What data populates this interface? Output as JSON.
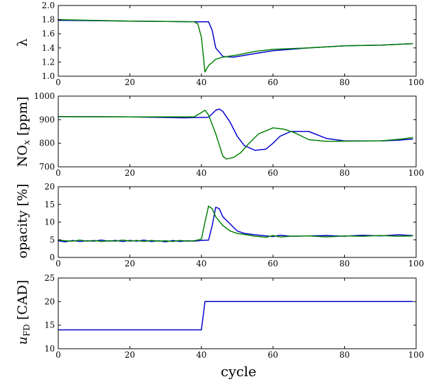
{
  "figure": {
    "xlabel": "cycle"
  },
  "chart_data": [
    {
      "type": "line",
      "ylabel": "λ",
      "xlim": [
        0,
        100
      ],
      "ylim": [
        1.0,
        2.0
      ],
      "x_ticks": [
        "0",
        "20",
        "40",
        "60",
        "80",
        "100"
      ],
      "y_ticks": [
        "1.0",
        "1.2",
        "1.4",
        "1.6",
        "1.8",
        "2.0"
      ],
      "series": [
        {
          "color": "#0000cc",
          "points": [
            [
              0,
              1.79
            ],
            [
              20,
              1.78
            ],
            [
              38,
              1.77
            ],
            [
              42,
              1.77
            ],
            [
              43,
              1.65
            ],
            [
              44,
              1.4
            ],
            [
              46,
              1.28
            ],
            [
              49,
              1.27
            ],
            [
              55,
              1.32
            ],
            [
              60,
              1.36
            ],
            [
              70,
              1.4
            ],
            [
              80,
              1.43
            ],
            [
              90,
              1.44
            ],
            [
              99,
              1.46
            ]
          ]
        },
        {
          "color": "#008000",
          "points": [
            [
              0,
              1.8
            ],
            [
              20,
              1.78
            ],
            [
              38,
              1.77
            ],
            [
              39,
              1.74
            ],
            [
              40,
              1.55
            ],
            [
              41,
              1.06
            ],
            [
              42,
              1.15
            ],
            [
              44,
              1.24
            ],
            [
              46,
              1.27
            ],
            [
              50,
              1.3
            ],
            [
              55,
              1.35
            ],
            [
              60,
              1.38
            ],
            [
              70,
              1.4
            ],
            [
              80,
              1.43
            ],
            [
              90,
              1.44
            ],
            [
              99,
              1.46
            ]
          ]
        }
      ]
    },
    {
      "type": "line",
      "ylabel": "NO_x [ppm]",
      "xlim": [
        0,
        100
      ],
      "ylim": [
        700,
        1000
      ],
      "x_ticks": [
        "0",
        "20",
        "40",
        "60",
        "80",
        "100"
      ],
      "y_ticks": [
        "700",
        "800",
        "900",
        "1000"
      ],
      "series": [
        {
          "color": "#0000cc",
          "points": [
            [
              0,
              913
            ],
            [
              20,
              912
            ],
            [
              35,
              908
            ],
            [
              42,
              910
            ],
            [
              44,
              940
            ],
            [
              45,
              945
            ],
            [
              46,
              935
            ],
            [
              48,
              890
            ],
            [
              50,
              830
            ],
            [
              52,
              790
            ],
            [
              55,
              770
            ],
            [
              58,
              775
            ],
            [
              60,
              800
            ],
            [
              62,
              830
            ],
            [
              65,
              850
            ],
            [
              70,
              850
            ],
            [
              75,
              820
            ],
            [
              80,
              810
            ],
            [
              90,
              810
            ],
            [
              95,
              813
            ],
            [
              99,
              818
            ]
          ]
        },
        {
          "color": "#008000",
          "points": [
            [
              0,
              913
            ],
            [
              20,
              912
            ],
            [
              38,
              912
            ],
            [
              40,
              930
            ],
            [
              41,
              940
            ],
            [
              42,
              920
            ],
            [
              44,
              840
            ],
            [
              46,
              745
            ],
            [
              47,
              733
            ],
            [
              49,
              740
            ],
            [
              51,
              760
            ],
            [
              53,
              795
            ],
            [
              56,
              840
            ],
            [
              60,
              865
            ],
            [
              63,
              860
            ],
            [
              66,
              845
            ],
            [
              70,
              815
            ],
            [
              75,
              808
            ],
            [
              90,
              810
            ],
            [
              96,
              818
            ],
            [
              99,
              824
            ]
          ]
        }
      ]
    },
    {
      "type": "line",
      "ylabel": "opacity [%]",
      "xlim": [
        0,
        100
      ],
      "ylim": [
        0,
        20
      ],
      "x_ticks": [
        "0",
        "20",
        "40",
        "60",
        "80",
        "100"
      ],
      "y_ticks": [
        "0",
        "5",
        "10",
        "15",
        "20"
      ],
      "series": [
        {
          "color": "#0000cc",
          "points": [
            [
              0,
              4.7
            ],
            [
              2,
              4.4
            ],
            [
              4,
              4.8
            ],
            [
              6,
              4.5
            ],
            [
              8,
              4.7
            ],
            [
              10,
              4.6
            ],
            [
              12,
              4.9
            ],
            [
              14,
              4.6
            ],
            [
              16,
              4.8
            ],
            [
              18,
              4.5
            ],
            [
              20,
              4.8
            ],
            [
              22,
              4.6
            ],
            [
              24,
              4.9
            ],
            [
              26,
              4.5
            ],
            [
              28,
              4.7
            ],
            [
              30,
              4.4
            ],
            [
              32,
              4.8
            ],
            [
              34,
              4.5
            ],
            [
              36,
              4.7
            ],
            [
              38,
              4.6
            ],
            [
              40,
              4.8
            ],
            [
              42,
              4.9
            ],
            [
              43,
              9.0
            ],
            [
              44,
              14.2
            ],
            [
              45,
              13.8
            ],
            [
              46,
              11.5
            ],
            [
              48,
              9.5
            ],
            [
              50,
              7.5
            ],
            [
              52,
              6.8
            ],
            [
              55,
              6.4
            ],
            [
              58,
              6.1
            ],
            [
              60,
              5.9
            ],
            [
              62,
              6.3
            ],
            [
              65,
              6.0
            ],
            [
              70,
              6.1
            ],
            [
              75,
              6.2
            ],
            [
              80,
              6.0
            ],
            [
              85,
              6.3
            ],
            [
              90,
              6.1
            ],
            [
              95,
              6.4
            ],
            [
              99,
              6.2
            ]
          ]
        },
        {
          "color": "#008000",
          "points": [
            [
              0,
              4.9
            ],
            [
              2,
              4.7
            ],
            [
              4,
              4.6
            ],
            [
              6,
              4.9
            ],
            [
              8,
              4.6
            ],
            [
              10,
              4.8
            ],
            [
              12,
              4.5
            ],
            [
              14,
              4.7
            ],
            [
              16,
              4.6
            ],
            [
              18,
              4.9
            ],
            [
              20,
              4.6
            ],
            [
              22,
              4.8
            ],
            [
              24,
              4.5
            ],
            [
              26,
              4.8
            ],
            [
              28,
              4.6
            ],
            [
              30,
              4.7
            ],
            [
              32,
              4.5
            ],
            [
              34,
              4.8
            ],
            [
              36,
              4.6
            ],
            [
              38,
              4.7
            ],
            [
              40,
              5.2
            ],
            [
              41,
              10.0
            ],
            [
              42,
              14.5
            ],
            [
              43,
              13.8
            ],
            [
              44,
              11.5
            ],
            [
              46,
              9.0
            ],
            [
              48,
              7.5
            ],
            [
              50,
              6.8
            ],
            [
              52,
              6.5
            ],
            [
              55,
              6.0
            ],
            [
              58,
              5.7
            ],
            [
              60,
              6.2
            ],
            [
              62,
              5.8
            ],
            [
              65,
              6.0
            ],
            [
              70,
              6.1
            ],
            [
              75,
              5.8
            ],
            [
              80,
              6.1
            ],
            [
              85,
              6.0
            ],
            [
              90,
              6.2
            ],
            [
              95,
              6.0
            ],
            [
              99,
              6.1
            ]
          ]
        }
      ]
    },
    {
      "type": "line",
      "ylabel": "u_FD [CAD]",
      "xlim": [
        0,
        100
      ],
      "ylim": [
        10,
        25
      ],
      "x_ticks": [
        "0",
        "20",
        "40",
        "60",
        "80",
        "100"
      ],
      "y_ticks": [
        "10",
        "15",
        "20",
        "25"
      ],
      "series": [
        {
          "color": "#0000cc",
          "points": [
            [
              0,
              14
            ],
            [
              40,
              14
            ],
            [
              41,
              20
            ],
            [
              99,
              20
            ]
          ]
        }
      ]
    }
  ]
}
